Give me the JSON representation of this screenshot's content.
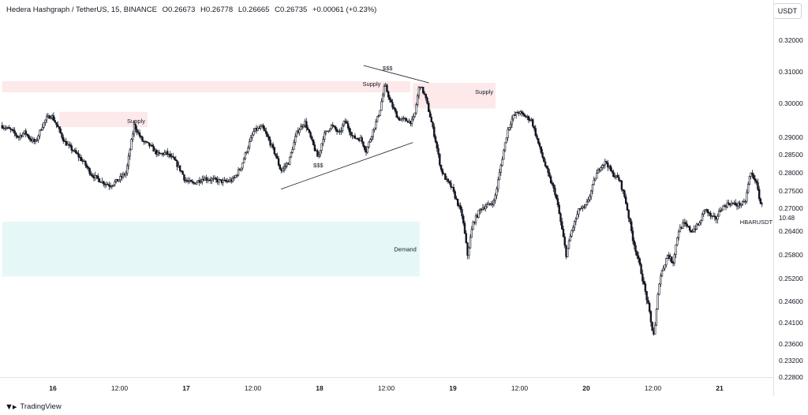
{
  "header": {
    "symbol": "Hedera Hashgraph / TetherUS, 15, BINANCE",
    "open": "O0.26673",
    "high": "H0.26778",
    "low": "L0.26665",
    "close": "C0.26735",
    "change": "+0.00061 (+0.23%)"
  },
  "currency_button": "USDT",
  "branding": "TradingView",
  "colors": {
    "candle": "#131722",
    "supply_zone": "#fde8ea",
    "demand_zone": "#e6f7f7",
    "axis_text": "#131722",
    "grid_line": "#e0e3eb"
  },
  "chart_data": {
    "type": "candlestick",
    "symbol": "HBARUSDT",
    "interval": "15",
    "exchange": "BINANCE",
    "y_ticks": [
      0.32,
      0.31,
      0.3,
      0.29,
      0.285,
      0.28,
      0.275,
      0.27,
      0.264,
      0.258,
      0.252,
      0.246,
      0.241,
      0.236,
      0.232,
      0.228
    ],
    "y_tick_labels": [
      "0.32000",
      "0.31000",
      "0.30000",
      "0.29000",
      "0.28500",
      "0.28000",
      "0.27500",
      "0.27000",
      "0.26400",
      "0.25800",
      "0.25200",
      "0.24600",
      "0.24100",
      "0.23600",
      "0.23200",
      "0.22800"
    ],
    "x_ticks": [
      {
        "label": "16",
        "t": 0.0
      },
      {
        "label": "12:00",
        "t": 0.5
      },
      {
        "label": "17",
        "t": 1.0
      },
      {
        "label": "12:00",
        "t": 1.5
      },
      {
        "label": "18",
        "t": 2.0
      },
      {
        "label": "12:00",
        "t": 2.5
      },
      {
        "label": "19",
        "t": 3.0
      },
      {
        "label": "12:00",
        "t": 3.5
      },
      {
        "label": "20",
        "t": 4.0
      },
      {
        "label": "12:00",
        "t": 4.5
      },
      {
        "label": "21",
        "t": 5.0
      }
    ],
    "price_path": [
      [
        -0.38,
        0.2935
      ],
      [
        -0.3,
        0.292
      ],
      [
        -0.25,
        0.29
      ],
      [
        -0.2,
        0.2915
      ],
      [
        -0.16,
        0.2895
      ],
      [
        -0.12,
        0.2885
      ],
      [
        -0.08,
        0.2925
      ],
      [
        -0.04,
        0.2955
      ],
      [
        0.0,
        0.2965
      ],
      [
        0.04,
        0.2935
      ],
      [
        0.1,
        0.2885
      ],
      [
        0.18,
        0.2855
      ],
      [
        0.24,
        0.283
      ],
      [
        0.3,
        0.2795
      ],
      [
        0.38,
        0.2775
      ],
      [
        0.44,
        0.2765
      ],
      [
        0.5,
        0.278
      ],
      [
        0.56,
        0.28
      ],
      [
        0.62,
        0.2935
      ],
      [
        0.68,
        0.289
      ],
      [
        0.74,
        0.2875
      ],
      [
        0.8,
        0.285
      ],
      [
        0.86,
        0.2855
      ],
      [
        0.92,
        0.2835
      ],
      [
        0.98,
        0.28
      ],
      [
        1.0,
        0.278
      ],
      [
        1.06,
        0.277
      ],
      [
        1.14,
        0.2785
      ],
      [
        1.22,
        0.278
      ],
      [
        1.3,
        0.2775
      ],
      [
        1.36,
        0.278
      ],
      [
        1.42,
        0.2815
      ],
      [
        1.48,
        0.288
      ],
      [
        1.52,
        0.292
      ],
      [
        1.58,
        0.293
      ],
      [
        1.62,
        0.29
      ],
      [
        1.68,
        0.285
      ],
      [
        1.72,
        0.2805
      ],
      [
        1.78,
        0.283
      ],
      [
        1.84,
        0.2915
      ],
      [
        1.9,
        0.2945
      ],
      [
        1.96,
        0.288
      ],
      [
        2.0,
        0.284
      ],
      [
        2.04,
        0.2905
      ],
      [
        2.1,
        0.2935
      ],
      [
        2.16,
        0.291
      ],
      [
        2.2,
        0.295
      ],
      [
        2.26,
        0.29
      ],
      [
        2.32,
        0.2895
      ],
      [
        2.36,
        0.286
      ],
      [
        2.42,
        0.293
      ],
      [
        2.46,
        0.2975
      ],
      [
        2.5,
        0.306
      ],
      [
        2.54,
        0.3005
      ],
      [
        2.6,
        0.2955
      ],
      [
        2.66,
        0.295
      ],
      [
        2.7,
        0.2945
      ],
      [
        2.72,
        0.296
      ],
      [
        2.76,
        0.306
      ],
      [
        2.8,
        0.3025
      ],
      [
        2.84,
        0.296
      ],
      [
        2.88,
        0.289
      ],
      [
        2.92,
        0.281
      ],
      [
        2.96,
        0.278
      ],
      [
        3.0,
        0.276
      ],
      [
        3.04,
        0.272
      ],
      [
        3.08,
        0.268
      ],
      [
        3.12,
        0.258
      ],
      [
        3.16,
        0.266
      ],
      [
        3.22,
        0.27
      ],
      [
        3.28,
        0.271
      ],
      [
        3.32,
        0.272
      ],
      [
        3.36,
        0.28
      ],
      [
        3.42,
        0.292
      ],
      [
        3.46,
        0.296
      ],
      [
        3.5,
        0.2975
      ],
      [
        3.56,
        0.296
      ],
      [
        3.6,
        0.295
      ],
      [
        3.66,
        0.287
      ],
      [
        3.72,
        0.28
      ],
      [
        3.78,
        0.274
      ],
      [
        3.82,
        0.266
      ],
      [
        3.86,
        0.258
      ],
      [
        3.9,
        0.264
      ],
      [
        3.96,
        0.27
      ],
      [
        4.0,
        0.27
      ],
      [
        4.04,
        0.274
      ],
      [
        4.08,
        0.279
      ],
      [
        4.12,
        0.282
      ],
      [
        4.16,
        0.283
      ],
      [
        4.2,
        0.28
      ],
      [
        4.26,
        0.278
      ],
      [
        4.3,
        0.273
      ],
      [
        4.36,
        0.262
      ],
      [
        4.42,
        0.254
      ],
      [
        4.48,
        0.244
      ],
      [
        4.5,
        0.24
      ],
      [
        4.52,
        0.238
      ],
      [
        4.56,
        0.252
      ],
      [
        4.62,
        0.258
      ],
      [
        4.66,
        0.256
      ],
      [
        4.7,
        0.264
      ],
      [
        4.74,
        0.266
      ],
      [
        4.8,
        0.264
      ],
      [
        4.86,
        0.266
      ],
      [
        4.9,
        0.27
      ],
      [
        4.94,
        0.268
      ],
      [
        4.98,
        0.267
      ],
      [
        5.02,
        0.27
      ],
      [
        5.08,
        0.2715
      ],
      [
        5.14,
        0.271
      ],
      [
        5.2,
        0.2715
      ],
      [
        5.24,
        0.28
      ],
      [
        5.28,
        0.278
      ],
      [
        5.32,
        0.271
      ]
    ],
    "zones": [
      {
        "kind": "supply",
        "label": "",
        "t0": -0.38,
        "t1": 2.68,
        "p_top": 0.307,
        "p_bot": 0.3035
      },
      {
        "kind": "supply",
        "label": "Supply",
        "t0": 0.05,
        "t1": 0.71,
        "p_top": 0.2975,
        "p_bot": 0.293
      },
      {
        "kind": "supply",
        "label": "Supply",
        "t0": 2.7,
        "t1": 3.32,
        "p_top": 0.3065,
        "p_bot": 0.2985
      },
      {
        "kind": "demand",
        "label": "Demand",
        "t0": -0.38,
        "t1": 2.75,
        "p_top": 0.2665,
        "p_bot": 0.2525
      }
    ],
    "annotations": [
      {
        "text": "Supply",
        "t": 2.39,
        "p": 0.3055
      },
      {
        "text": "$$$",
        "t": 2.51,
        "p": 0.3105
      },
      {
        "text": "$$$",
        "t": 1.99,
        "p": 0.2815
      }
    ],
    "trendlines": [
      {
        "t0": 2.33,
        "p0": 0.312,
        "t1": 2.82,
        "p1": 0.3065
      },
      {
        "t0": 1.71,
        "p0": 0.2755,
        "t1": 2.7,
        "p1": 0.2885
      }
    ],
    "last_price_label": {
      "text": "HBARUSDT",
      "t": 5.2,
      "p": 0.2683
    },
    "countdown": {
      "text": "10:48",
      "t": 5.42,
      "p": 0.2677
    }
  }
}
